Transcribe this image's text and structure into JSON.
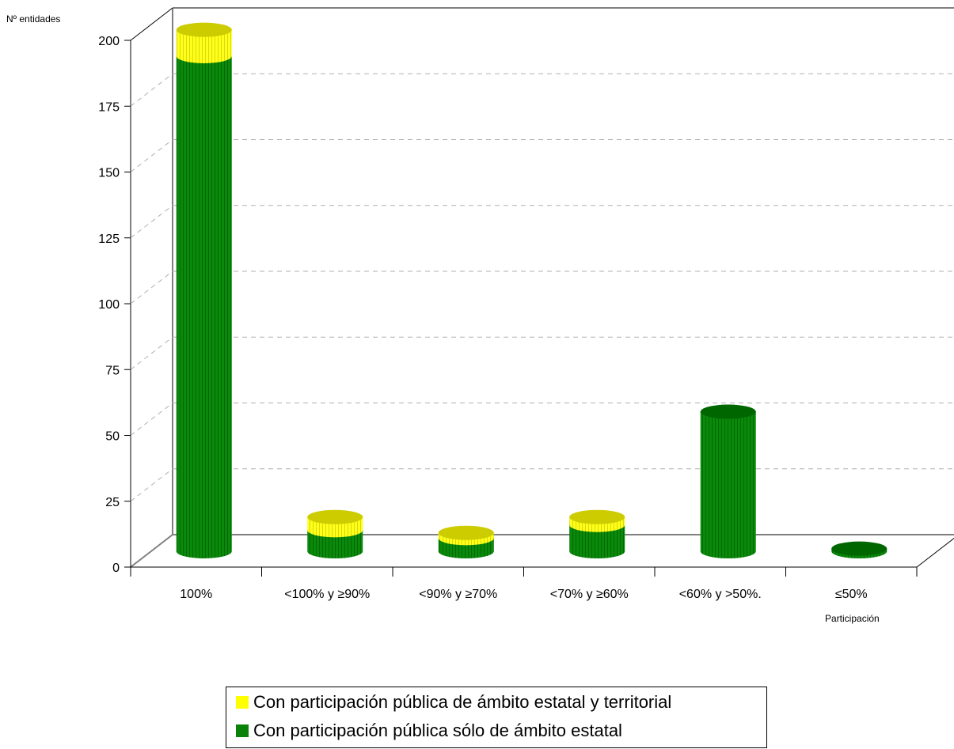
{
  "chart_data": {
    "type": "bar",
    "style": "3d-cylinder-stacked",
    "ylabel": "Nº entidades",
    "xlabel": "Participación",
    "ylim": [
      0,
      200
    ],
    "yticks": [
      0,
      25,
      50,
      75,
      100,
      125,
      150,
      175,
      200
    ],
    "grid": true,
    "categories": [
      "100%",
      "<100% y ≥90%",
      "<90% y ≥70%",
      "<70% y ≥60%",
      "<60% y >50%.",
      "≤50%"
    ],
    "series": [
      {
        "name": "Con participación pública sólo de ámbito estatal",
        "color": "#0a820a",
        "values": [
          188,
          8,
          5,
          10,
          53,
          1
        ]
      },
      {
        "name": "Con participación pública de ámbito estatal y territorial",
        "color": "#ffff00",
        "values": [
          10,
          5,
          2,
          3,
          0,
          0
        ]
      }
    ],
    "legend": {
      "position": "bottom-center",
      "items": [
        {
          "label": "Con participación pública de ámbito estatal y territorial",
          "color": "#ffff00"
        },
        {
          "label": "Con participación pública sólo de ámbito estatal",
          "color": "#0a820a"
        }
      ]
    }
  }
}
